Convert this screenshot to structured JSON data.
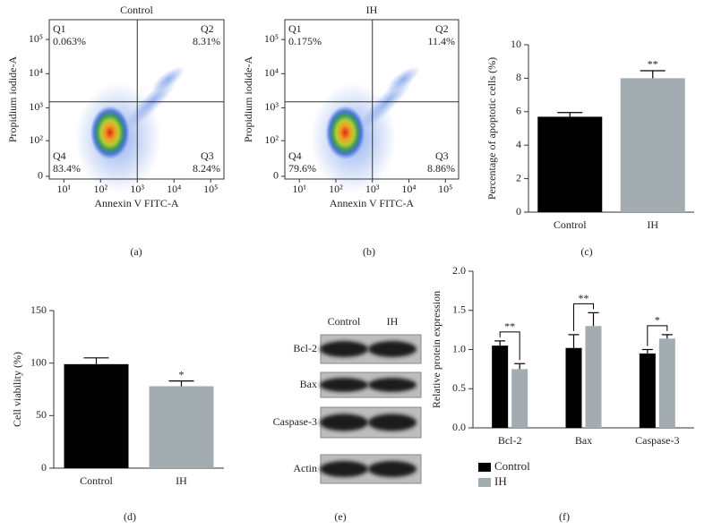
{
  "chart_data": [
    {
      "type": "flow",
      "title": "Control",
      "panel_label": "(a)",
      "x_label": "Annexin V FITC-A",
      "y_label": "Propidium iodide-A",
      "x_scale": "log",
      "y_scale": "symlog",
      "xlim": [
        4,
        230000
      ],
      "ylim": [
        -2,
        380000
      ],
      "xticks": [
        {
          "value": 10,
          "label": "10¹"
        },
        {
          "value": 100,
          "label": "10²"
        },
        {
          "value": 1000,
          "label": "10³"
        },
        {
          "value": 10000,
          "label": "10⁴"
        },
        {
          "value": 100000,
          "label": "10⁵"
        }
      ],
      "yticks": [
        0,
        {
          "value": 100,
          "label": "10²"
        },
        {
          "value": 1000,
          "label": "10³"
        },
        {
          "value": 10000,
          "label": "10⁴"
        },
        {
          "value": 100000,
          "label": "10⁵"
        }
      ],
      "gate": [
        1000,
        1500
      ],
      "quadrants": [
        {
          "name": "Q1",
          "value": 0.063,
          "label": "0.063%"
        },
        {
          "name": "Q2",
          "value": 8.31,
          "label": "8.31%"
        },
        {
          "name": "Q3",
          "value": 8.24,
          "label": "8.24%"
        },
        {
          "name": "Q4",
          "value": 83.4,
          "label": "83.4%"
        }
      ]
    },
    {
      "type": "flow",
      "title": "IH",
      "panel_label": "(b)",
      "x_label": "Annexin V FITC-A",
      "y_label": "Propidium iodide-A",
      "x_scale": "log",
      "y_scale": "symlog",
      "xlim": [
        4,
        230000
      ],
      "ylim": [
        -2,
        380000
      ],
      "xticks": [
        {
          "value": 10,
          "label": "10¹"
        },
        {
          "value": 100,
          "label": "10²"
        },
        {
          "value": 1000,
          "label": "10³"
        },
        {
          "value": 10000,
          "label": "10⁴"
        },
        {
          "value": 100000,
          "label": "10⁵"
        }
      ],
      "yticks": [
        0,
        {
          "value": 100,
          "label": "10²"
        },
        {
          "value": 1000,
          "label": "10³"
        },
        {
          "value": 10000,
          "label": "10⁴"
        },
        {
          "value": 100000,
          "label": "10⁵"
        }
      ],
      "gate": [
        1000,
        1500
      ],
      "quadrants": [
        {
          "name": "Q1",
          "value": 0.175,
          "label": "0.175%"
        },
        {
          "name": "Q2",
          "value": 11.4,
          "label": "11.4%"
        },
        {
          "name": "Q3",
          "value": 8.86,
          "label": "8.86%"
        },
        {
          "name": "Q4",
          "value": 79.6,
          "label": "79.6%"
        }
      ]
    },
    {
      "type": "bar",
      "panel_label": "(c)",
      "y_label": "Percentage of apoptotic cells (%)",
      "categories": [
        "Control",
        "IH"
      ],
      "values": [
        5.7,
        8.0
      ],
      "errors": [
        0.25,
        0.45
      ],
      "colors": [
        "#000000",
        "#a3adb1"
      ],
      "significance": [
        null,
        "**"
      ],
      "ylim": [
        0,
        10
      ],
      "yticks": [
        0,
        2,
        4,
        6,
        8,
        10
      ]
    },
    {
      "type": "bar",
      "panel_label": "(d)",
      "y_label": "Cell viability (%)",
      "categories": [
        "Control",
        "IH"
      ],
      "values": [
        99,
        78
      ],
      "errors": [
        6,
        5
      ],
      "colors": [
        "#000000",
        "#a3adb1"
      ],
      "significance": [
        null,
        "*"
      ],
      "ylim": [
        0,
        150
      ],
      "yticks": [
        0,
        50,
        100,
        150
      ]
    },
    {
      "type": "blot",
      "panel_label": "(e)",
      "columns": [
        "Control",
        "IH"
      ],
      "rows": [
        "Bcl-2",
        "Bax",
        "Caspase-3",
        "Actin"
      ]
    },
    {
      "type": "grouped_bar",
      "panel_label": "(f)",
      "y_label": "Relative protein expression",
      "categories": [
        "Bcl-2",
        "Bax",
        "Caspase-3"
      ],
      "series": [
        {
          "name": "Control",
          "color": "#000000",
          "values": [
            1.05,
            1.02,
            0.95
          ],
          "errors": [
            0.06,
            0.17,
            0.05
          ]
        },
        {
          "name": "IH",
          "color": "#a3adb1",
          "values": [
            0.75,
            1.3,
            1.14
          ],
          "errors": [
            0.07,
            0.17,
            0.05
          ]
        }
      ],
      "significance": [
        "**",
        "**",
        "*"
      ],
      "ylim": [
        0,
        2
      ],
      "yticks": [
        {
          "value": 0,
          "label": "0.0"
        },
        {
          "value": 0.5,
          "label": "0.5"
        },
        {
          "value": 1,
          "label": "1.0"
        },
        {
          "value": 1.5,
          "label": "1.5"
        },
        {
          "value": 2,
          "label": "2.0"
        }
      ],
      "legend": "bottom-left"
    }
  ]
}
